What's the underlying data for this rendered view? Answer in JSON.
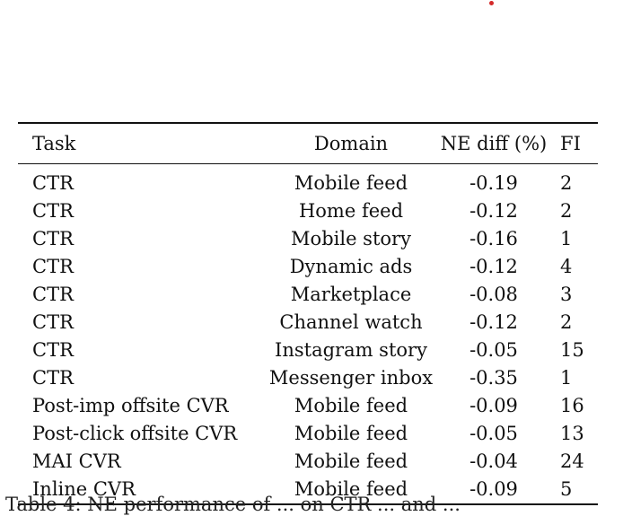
{
  "table": {
    "headers": {
      "task": "Task",
      "domain": "Domain",
      "ne_diff": "NE diff (%)",
      "fi": "FI"
    },
    "rows": [
      {
        "task": "CTR",
        "domain": "Mobile feed",
        "ne_diff": "-0.19",
        "fi": "2"
      },
      {
        "task": "CTR",
        "domain": "Home feed",
        "ne_diff": "-0.12",
        "fi": "2"
      },
      {
        "task": "CTR",
        "domain": "Mobile story",
        "ne_diff": "-0.16",
        "fi": "1"
      },
      {
        "task": "CTR",
        "domain": "Dynamic ads",
        "ne_diff": "-0.12",
        "fi": "4"
      },
      {
        "task": "CTR",
        "domain": "Marketplace",
        "ne_diff": "-0.08",
        "fi": "3"
      },
      {
        "task": "CTR",
        "domain": "Channel watch",
        "ne_diff": "-0.12",
        "fi": "2"
      },
      {
        "task": "CTR",
        "domain": "Instagram story",
        "ne_diff": "-0.05",
        "fi": "15"
      },
      {
        "task": "CTR",
        "domain": "Messenger inbox",
        "ne_diff": "-0.35",
        "fi": "1"
      },
      {
        "task": "Post-imp offsite CVR",
        "domain": "Mobile feed",
        "ne_diff": "-0.09",
        "fi": "16"
      },
      {
        "task": "Post-click offsite CVR",
        "domain": "Mobile feed",
        "ne_diff": "-0.05",
        "fi": "13"
      },
      {
        "task": "MAI CVR",
        "domain": "Mobile feed",
        "ne_diff": "-0.04",
        "fi": "24"
      },
      {
        "task": "Inline CVR",
        "domain": "Mobile feed",
        "ne_diff": "-0.09",
        "fi": "5"
      }
    ]
  },
  "caption_fragment": "Table 4: NE performance of ... on CTR ... and ..."
}
